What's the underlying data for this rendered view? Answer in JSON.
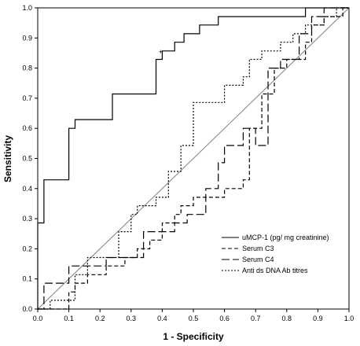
{
  "chart_data": {
    "type": "line",
    "xlabel": "1 - Specificity",
    "ylabel": "Sensitivity",
    "xlim": [
      0,
      1
    ],
    "ylim": [
      0,
      1
    ],
    "xticks": [
      "0.0",
      "0.1",
      "0.2",
      "0.3",
      "0.4",
      "0.5",
      "0.6",
      "0.7",
      "0.8",
      "0.9",
      "1.0"
    ],
    "yticks": [
      "0.0",
      "0.1",
      "0.2",
      "0.3",
      "0.4",
      "0.5",
      "0.6",
      "0.7",
      "0.8",
      "0.9",
      "1.0"
    ],
    "grid": false,
    "legend_position": "bottom-right",
    "reference_line": {
      "x": [
        0,
        1
      ],
      "y": [
        0,
        1
      ],
      "color": "#808080"
    },
    "series": [
      {
        "name": "uMCP-1 (pg/ mg creatinine)",
        "style": "solid",
        "color": "#000000",
        "marker": {
          "x": 0.395,
          "y": 0.857,
          "symbol": "+"
        },
        "x": [
          0,
          0,
          0.02,
          0.02,
          0.1,
          0.1,
          0.12,
          0.12,
          0.24,
          0.24,
          0.38,
          0.38,
          0.4,
          0.4,
          0.44,
          0.44,
          0.47,
          0.47,
          0.52,
          0.52,
          0.58,
          0.58,
          0.62,
          0.62,
          0.74,
          0.74,
          0.86,
          0.86,
          1
        ],
        "y": [
          0,
          0.286,
          0.286,
          0.429,
          0.429,
          0.6,
          0.6,
          0.629,
          0.629,
          0.714,
          0.714,
          0.829,
          0.829,
          0.857,
          0.857,
          0.886,
          0.886,
          0.914,
          0.914,
          0.943,
          0.943,
          0.971,
          0.971,
          0.971,
          0.971,
          0.971,
          0.971,
          1,
          1
        ]
      },
      {
        "name": "Serum C3",
        "style": "dashed",
        "color": "#000000",
        "x": [
          0,
          0.1,
          0.1,
          0.12,
          0.12,
          0.16,
          0.16,
          0.22,
          0.22,
          0.28,
          0.28,
          0.32,
          0.32,
          0.36,
          0.36,
          0.4,
          0.4,
          0.44,
          0.44,
          0.46,
          0.46,
          0.5,
          0.5,
          0.56,
          0.56,
          0.6,
          0.6,
          0.66,
          0.66,
          0.68,
          0.68,
          0.72,
          0.72,
          0.76,
          0.76,
          0.8,
          0.8,
          0.86,
          0.86,
          0.88,
          0.88,
          0.92,
          0.92,
          0.98,
          0.98,
          1
        ],
        "y": [
          0,
          0,
          0.057,
          0.057,
          0.086,
          0.086,
          0.114,
          0.114,
          0.143,
          0.143,
          0.171,
          0.171,
          0.2,
          0.2,
          0.229,
          0.229,
          0.286,
          0.286,
          0.314,
          0.314,
          0.343,
          0.343,
          0.371,
          0.371,
          0.371,
          0.371,
          0.4,
          0.4,
          0.429,
          0.429,
          0.6,
          0.6,
          0.714,
          0.714,
          0.8,
          0.8,
          0.829,
          0.829,
          0.886,
          0.886,
          0.943,
          0.943,
          0.971,
          0.971,
          1,
          1
        ]
      },
      {
        "name": "Serum C4",
        "style": "long-dash",
        "color": "#000000",
        "x": [
          0,
          0.02,
          0.02,
          0.1,
          0.1,
          0.22,
          0.22,
          0.34,
          0.34,
          0.44,
          0.44,
          0.48,
          0.48,
          0.54,
          0.54,
          0.58,
          0.58,
          0.6,
          0.6,
          0.62,
          0.62,
          0.66,
          0.66,
          0.7,
          0.7,
          0.74,
          0.74,
          0.78,
          0.78,
          0.84,
          0.84,
          0.88,
          0.88,
          0.92,
          0.92,
          0.96,
          0.96,
          1
        ],
        "y": [
          0,
          0,
          0.086,
          0.086,
          0.143,
          0.143,
          0.171,
          0.171,
          0.257,
          0.257,
          0.286,
          0.286,
          0.314,
          0.314,
          0.4,
          0.4,
          0.486,
          0.486,
          0.543,
          0.543,
          0.543,
          0.543,
          0.6,
          0.6,
          0.543,
          0.543,
          0.8,
          0.8,
          0.829,
          0.829,
          0.914,
          0.914,
          0.971,
          0.971,
          1,
          1,
          1,
          1
        ]
      },
      {
        "name": "Anti ds DNA Ab titres",
        "style": "dotted",
        "color": "#000000",
        "x": [
          0,
          0.04,
          0.04,
          0.12,
          0.12,
          0.16,
          0.16,
          0.26,
          0.26,
          0.3,
          0.3,
          0.32,
          0.32,
          0.38,
          0.38,
          0.42,
          0.42,
          0.46,
          0.46,
          0.5,
          0.5,
          0.56,
          0.56,
          0.6,
          0.6,
          0.64,
          0.64,
          0.66,
          0.66,
          0.68,
          0.68,
          0.72,
          0.72,
          0.78,
          0.78,
          0.82,
          0.82,
          0.86,
          0.86,
          0.92,
          0.92,
          0.96,
          0.96,
          1
        ],
        "y": [
          0,
          0,
          0.029,
          0.029,
          0.114,
          0.114,
          0.171,
          0.171,
          0.257,
          0.257,
          0.314,
          0.314,
          0.343,
          0.343,
          0.371,
          0.371,
          0.457,
          0.457,
          0.543,
          0.543,
          0.686,
          0.686,
          0.686,
          0.686,
          0.743,
          0.743,
          0.743,
          0.743,
          0.771,
          0.771,
          0.829,
          0.829,
          0.857,
          0.857,
          0.886,
          0.886,
          0.914,
          0.914,
          0.943,
          0.943,
          0.971,
          0.971,
          1,
          1
        ]
      }
    ]
  }
}
